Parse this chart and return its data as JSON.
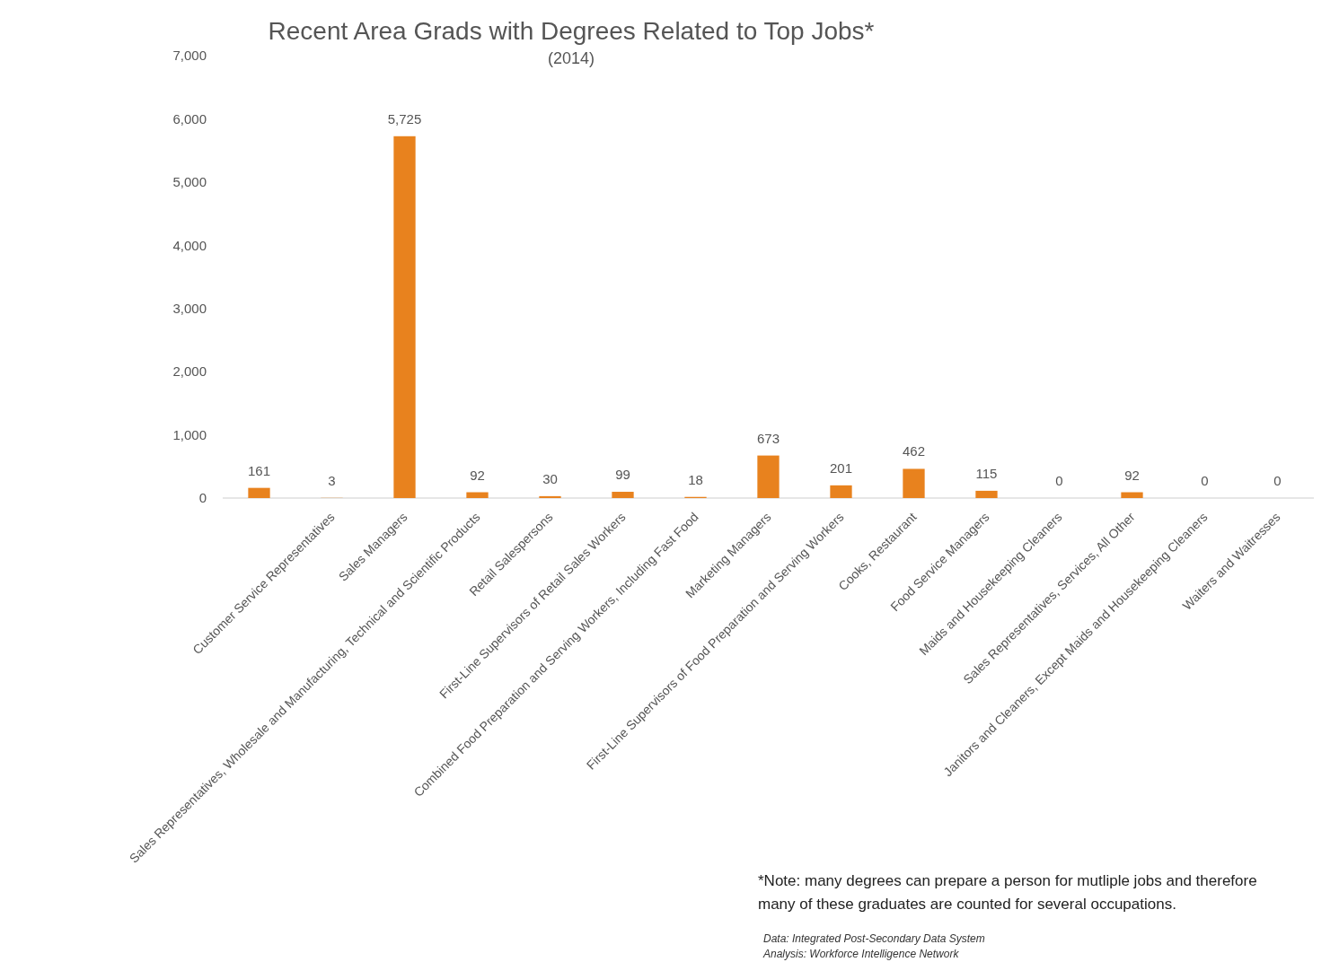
{
  "chart_data": {
    "type": "bar",
    "title": "Recent Area Grads with Degrees Related to Top Jobs*",
    "subtitle": "(2014)",
    "categories": [
      null,
      "Customer Service Representatives",
      "Sales Managers",
      "Sales Representatives, Wholesale and Manufacturing, Technical and Scientific Products",
      "Retail Salespersons",
      "First-Line Supervisors of Retail Sales Workers",
      "Combined Food Preparation and Serving Workers, Including Fast Food",
      "Marketing Managers",
      "First-Line Supervisors of Food Preparation and Serving Workers",
      "Cooks, Restaurant",
      "Food Service Managers",
      "Maids and Housekeeping Cleaners",
      "Sales Representatives, Services, All Other",
      "Janitors and Cleaners, Except Maids and Housekeeping Cleaners",
      "Waiters and Waitresses"
    ],
    "values": [
      161,
      3,
      5725,
      92,
      30,
      99,
      18,
      673,
      201,
      462,
      115,
      0,
      92,
      0,
      0
    ],
    "value_labels": [
      "161",
      "3",
      "5,725",
      "92",
      "30",
      "99",
      "18",
      "673",
      "201",
      "462",
      "115",
      "0",
      "92",
      "0",
      "0"
    ],
    "color": "#e8821e",
    "grid": false,
    "ylim": [
      0,
      7000
    ],
    "yticks": [
      0,
      {
        "value": 1000,
        "label": "1,000"
      },
      {
        "value": 2000,
        "label": "2,000"
      },
      {
        "value": 3000,
        "label": "3,000"
      },
      {
        "value": 4000,
        "label": "4,000"
      },
      {
        "value": 5000,
        "label": "5,000"
      },
      {
        "value": 6000,
        "label": "6,000"
      },
      {
        "value": 7000,
        "label": "7,000"
      }
    ],
    "annotations": [
      "*Note: many degrees can prepare a person for mutliple jobs and therefore many of these graduates are counted for several occupations.",
      "Data: Integrated Post-Secondary Data System",
      "Analysis: Workforce Intelligence Network"
    ]
  }
}
